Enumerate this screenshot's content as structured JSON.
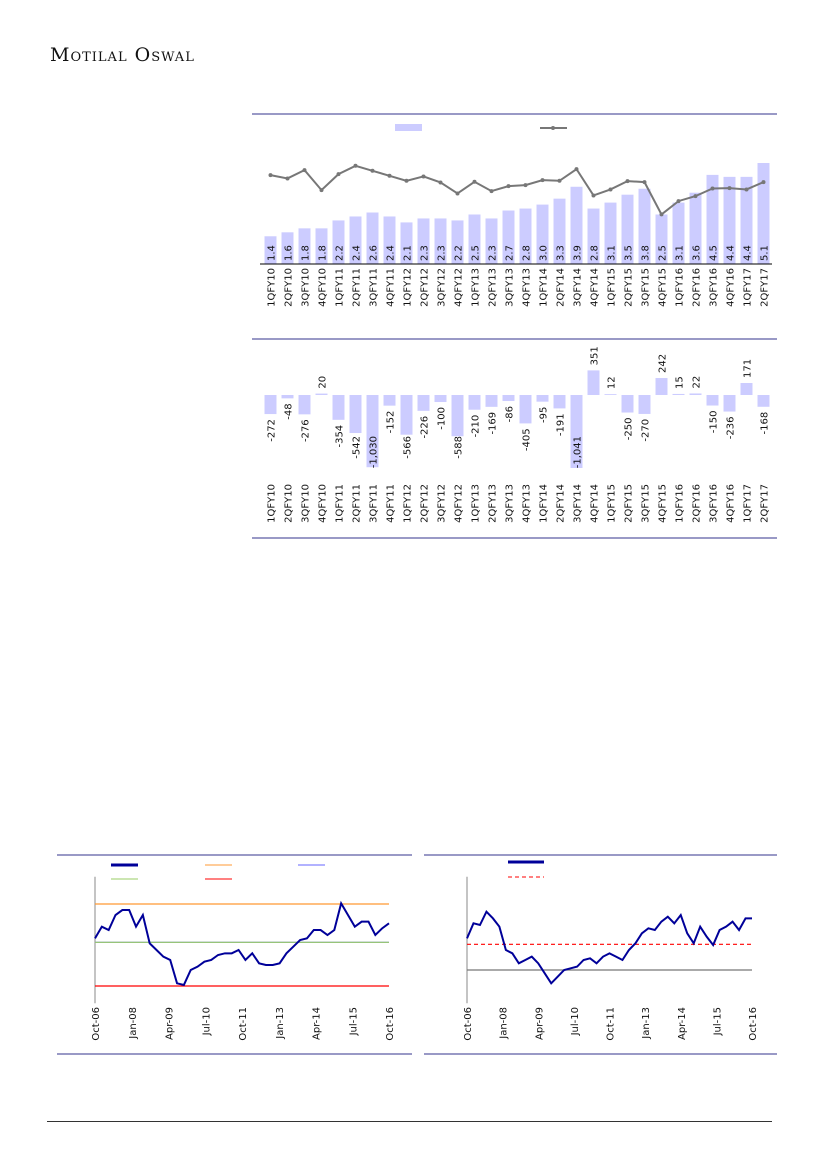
{
  "header": {
    "logo": "Motilal Oswal"
  },
  "chart_data": [
    {
      "type": "bar",
      "title": "",
      "categories": [
        "1QFY10",
        "2QFY10",
        "3QFY10",
        "4QFY10",
        "1QFY11",
        "2QFY11",
        "3QFY11",
        "4QFY11",
        "1QFY12",
        "2QFY12",
        "3QFY12",
        "4QFY12",
        "1QFY13",
        "2QFY13",
        "3QFY13",
        "4QFY13",
        "1QFY14",
        "2QFY14",
        "3QFY14",
        "4QFY14",
        "1QFY15",
        "2QFY15",
        "3QFY15",
        "4QFY15",
        "1QFY16",
        "2QFY16",
        "3QFY16",
        "4QFY16",
        "1QFY17",
        "2QFY17"
      ],
      "series": [
        {
          "name": "",
          "kind": "bar",
          "color": "#ccccff",
          "values": [
            1.4,
            1.6,
            1.8,
            1.8,
            2.2,
            2.4,
            2.6,
            2.4,
            2.1,
            2.3,
            2.3,
            2.2,
            2.5,
            2.3,
            2.7,
            2.8,
            3.0,
            3.3,
            3.9,
            2.8,
            3.1,
            3.5,
            3.8,
            2.5,
            3.1,
            3.6,
            4.5,
            4.4,
            4.4,
            5.1
          ]
        },
        {
          "name": "",
          "kind": "line",
          "color": "#777777",
          "values": [
            27.5,
            26.5,
            29.0,
            23.0,
            27.8,
            30.3,
            28.8,
            27.3,
            25.8,
            27.1,
            25.3,
            22.0,
            25.5,
            22.7,
            24.2,
            24.5,
            26.0,
            25.8,
            29.3,
            21.4,
            23.2,
            25.7,
            25.4,
            15.7,
            19.7,
            21.2,
            23.5,
            23.6,
            23.2,
            25.4
          ]
        }
      ],
      "ylim": [
        0,
        5.1
      ],
      "legend": "top"
    },
    {
      "type": "bar",
      "title": "",
      "categories": [
        "1QFY10",
        "2QFY10",
        "3QFY10",
        "4QFY10",
        "1QFY11",
        "2QFY11",
        "3QFY11",
        "4QFY11",
        "1QFY12",
        "2QFY12",
        "3QFY12",
        "4QFY12",
        "1QFY13",
        "2QFY13",
        "3QFY13",
        "4QFY13",
        "1QFY14",
        "2QFY14",
        "3QFY14",
        "4QFY14",
        "1QFY15",
        "2QFY15",
        "3QFY15",
        "4QFY15",
        "1QFY16",
        "2QFY16",
        "3QFY16",
        "4QFY16",
        "1QFY17",
        "2QFY17"
      ],
      "values": [
        -272,
        -48,
        -276,
        20,
        -354,
        -542,
        -1030,
        -152,
        -566,
        -226,
        -100,
        -588,
        -210,
        -169,
        -86,
        -405,
        -95,
        -191,
        -1041,
        351,
        12,
        -250,
        -270,
        242,
        15,
        22,
        -150,
        -236,
        171,
        -168
      ],
      "labels": [
        "-272",
        "-48",
        "-276",
        "20",
        "-354",
        "-542",
        "-1,030",
        "-152",
        "-566",
        "-226",
        "-100",
        "-588",
        "-210",
        "-169",
        "-86",
        "-405",
        "-95",
        "-191",
        "-1,041",
        "351",
        "12",
        "-250",
        "-270",
        "242",
        "15",
        "22",
        "-150",
        "-236",
        "171",
        "-168"
      ],
      "color": "#ccccff",
      "ylim": [
        -1041,
        351
      ]
    },
    {
      "type": "line",
      "x_ticks": [
        "Oct-06",
        "Jan-08",
        "Apr-09",
        "Jul-10",
        "Oct-11",
        "Jan-13",
        "Apr-14",
        "Jul-15",
        "Oct-16"
      ],
      "series": [
        {
          "name": "",
          "color": "#000099",
          "values": [
            195,
            230,
            220,
            265,
            280,
            280,
            230,
            265,
            180,
            160,
            140,
            130,
            60,
            55,
            100,
            110,
            125,
            130,
            145,
            150,
            150,
            160,
            130,
            150,
            120,
            115,
            115,
            120,
            150,
            170,
            190,
            195,
            220,
            220,
            205,
            220,
            300,
            265,
            230,
            245,
            245,
            205,
            225,
            240
          ]
        }
      ],
      "reference_lines": [
        {
          "name": "",
          "color": "#ff9933",
          "value": 298
        },
        {
          "name": "",
          "color": "#6666ff",
          "value": 183
        },
        {
          "name": "",
          "color": "#99cc66",
          "value": 183
        },
        {
          "name": "",
          "color": "#ff0000",
          "value": 52
        }
      ],
      "ylim": [
        0,
        380
      ]
    },
    {
      "type": "line",
      "x_ticks": [
        "Oct-06",
        "Jan-08",
        "Apr-09",
        "Jul-10",
        "Oct-11",
        "Jan-13",
        "Apr-14",
        "Jul-15",
        "Oct-16"
      ],
      "series": [
        {
          "name": "",
          "color": "#000099",
          "values": [
            195,
            240,
            235,
            275,
            255,
            230,
            160,
            150,
            120,
            130,
            140,
            120,
            90,
            60,
            80,
            100,
            105,
            110,
            130,
            135,
            120,
            140,
            150,
            140,
            130,
            160,
            180,
            210,
            225,
            220,
            245,
            260,
            240,
            265,
            210,
            180,
            230,
            200,
            175,
            220,
            230,
            245,
            220,
            255,
            255
          ]
        }
      ],
      "reference_lines": [
        {
          "name": "",
          "color": "#ff0000",
          "value": 177,
          "dashed": true
        },
        {
          "name": "",
          "color": "#777777",
          "value": 100
        }
      ],
      "ylim": [
        0,
        380
      ]
    }
  ]
}
